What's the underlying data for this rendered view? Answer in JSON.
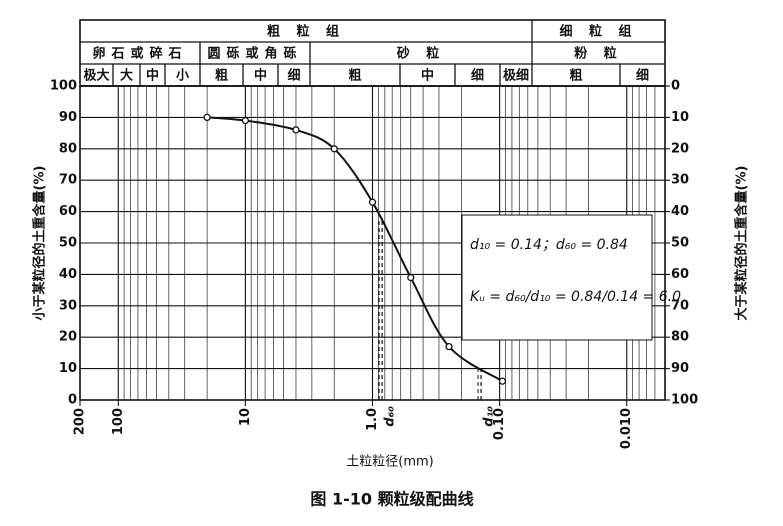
{
  "chart_data": {
    "type": "line",
    "title": "图 1-10   颗粒级配曲线",
    "xlabel": "土粒粒径(mm)",
    "ylabel": "小于某粒径的土重含量(%)",
    "y2label": "大于某粒径的土重含量(%)",
    "x": [
      20,
      10,
      4,
      2,
      1,
      0.5,
      0.25,
      0.095
    ],
    "values": [
      90,
      89,
      86,
      80,
      63,
      39,
      17,
      6
    ],
    "color": "#111111",
    "xscale": "log",
    "xlim": [
      200,
      0.005
    ],
    "xticks": [
      200,
      100,
      10,
      {
        "value": 1,
        "label": "1.0"
      },
      {
        "value": 0.1,
        "label": "0.10"
      },
      {
        "value": 0.01,
        "label": "0.010"
      }
    ],
    "ylim": [
      0,
      100
    ],
    "yticks": [
      0,
      10,
      20,
      30,
      40,
      50,
      60,
      70,
      80,
      90,
      100
    ],
    "y2lim": [
      100,
      0
    ],
    "y2ticks": [
      0,
      10,
      20,
      30,
      40,
      50,
      60,
      70,
      80,
      90,
      100
    ],
    "grid": true,
    "markers": [
      {
        "label": "d₆₀",
        "value": 0.84
      },
      {
        "label": "d₁₀",
        "value": 0.14
      }
    ],
    "annotations": [
      "d₁₀ = 0.14；d₆₀ = 0.84",
      "Kᵤ = d₆₀/d₁₀ = 0.84/0.14 = 6.0"
    ],
    "header": {
      "groups": [
        "粗 粒 组",
        "细 粒 组"
      ],
      "classes": [
        "卵石或碎石",
        "圆砾或角砾",
        "砂 粒",
        "粉 粒"
      ],
      "subclasses": [
        "极大",
        "大",
        "中",
        "小",
        "粗",
        "中",
        "细",
        "粗",
        "中",
        "细",
        "极细",
        "粗",
        "细"
      ]
    }
  }
}
